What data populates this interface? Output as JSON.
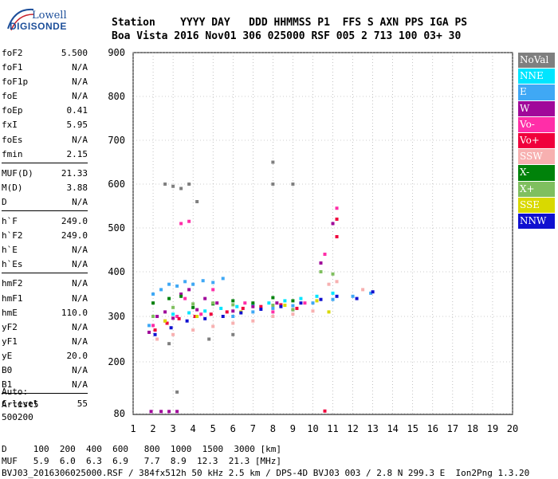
{
  "logo": {
    "line1": "Lowell",
    "line2": "DIGISONDE"
  },
  "header": {
    "labels": "Station    YYYY DAY   DDD HHMMSS P1  FFS S AXN PPS IGA PS",
    "values": "Boa Vista 2016 Nov01 306 025000 RSF 005 2 713 100 03+ 30"
  },
  "params": {
    "group1": [
      {
        "key": "foF2",
        "value": "5.500"
      },
      {
        "key": "foF1",
        "value": "N/A"
      },
      {
        "key": "foF1p",
        "value": "N/A"
      },
      {
        "key": "foE",
        "value": "N/A"
      },
      {
        "key": "foEp",
        "value": "0.41"
      },
      {
        "key": "fxI",
        "value": "5.95"
      },
      {
        "key": "foEs",
        "value": "N/A"
      },
      {
        "key": "fmin",
        "value": "2.15"
      }
    ],
    "group2": [
      {
        "key": "MUF(D)",
        "value": "21.33"
      },
      {
        "key": "M(D)",
        "value": "3.88"
      },
      {
        "key": "D",
        "value": "N/A"
      }
    ],
    "group3": [
      {
        "key": "h`F",
        "value": "249.0"
      },
      {
        "key": "h`F2",
        "value": "249.0"
      },
      {
        "key": "h`E",
        "value": "N/A"
      },
      {
        "key": "h`Es",
        "value": "N/A"
      }
    ],
    "group4": [
      {
        "key": "hmF2",
        "value": "N/A"
      },
      {
        "key": "hmF1",
        "value": "N/A"
      },
      {
        "key": "hmE",
        "value": "110.0"
      },
      {
        "key": "yF2",
        "value": "N/A"
      },
      {
        "key": "yF1",
        "value": "N/A"
      },
      {
        "key": "yE",
        "value": "20.0"
      },
      {
        "key": "B0",
        "value": "N/A"
      },
      {
        "key": "B1",
        "value": "N/A"
      }
    ],
    "group5": [
      {
        "key": "C-level",
        "value": "55"
      }
    ]
  },
  "auto": {
    "line1": "Auto:",
    "line2": "Artist5",
    "line3": "500200"
  },
  "legend": [
    {
      "label": "NoVal",
      "bg": "#7f7f7f",
      "fg": "#ffffff"
    },
    {
      "label": "NNE",
      "bg": "#00e5ff",
      "fg": "#ffffff"
    },
    {
      "label": "E",
      "bg": "#3fa8f5",
      "fg": "#ffffff"
    },
    {
      "label": "W",
      "bg": "#a0089a",
      "fg": "#ffffff"
    },
    {
      "label": "Vo-",
      "bg": "#ff2ea8",
      "fg": "#ffffff"
    },
    {
      "label": "Vo+",
      "bg": "#f0003c",
      "fg": "#ffffff"
    },
    {
      "label": "SSW",
      "bg": "#f7b0b0",
      "fg": "#ffffff"
    },
    {
      "label": "X-",
      "bg": "#00820a",
      "fg": "#ffffff"
    },
    {
      "label": "X+",
      "bg": "#7fbf5f",
      "fg": "#ffffff"
    },
    {
      "label": "SSE",
      "bg": "#d9d900",
      "fg": "#ffffff"
    },
    {
      "label": "NNW",
      "bg": "#1010d0",
      "fg": "#ffffff"
    }
  ],
  "footer": {
    "line1": "D     100  200  400  600   800  1000  1500  3000 [km]",
    "line2": "MUF   5.9  6.0  6.3  6.9   7.7  8.9  12.3  21.3 [MHz]",
    "line3": "BVJ03_2016306025000.RSF / 384fx512h 50 kHz 2.5 km / DPS-4D BVJ03 003 / 2.8 N 299.3 E  Ion2Png 1.3.20"
  },
  "chart_data": {
    "type": "scatter",
    "title": "",
    "xlabel": "",
    "ylabel": "",
    "xlim": [
      1,
      20
    ],
    "ylim": [
      80,
      900
    ],
    "x_ticks": [
      1,
      2,
      3,
      4,
      5,
      6,
      7,
      8,
      9,
      10,
      11,
      12,
      13,
      14,
      15,
      16,
      17,
      18,
      19,
      20
    ],
    "y_ticks": [
      80,
      200,
      300,
      400,
      500,
      600,
      700,
      800,
      900
    ],
    "grid": true,
    "series": [
      {
        "name": "NNE",
        "color": "#00e5ff",
        "points": [
          [
            2.2,
            300
          ],
          [
            3.0,
            305
          ],
          [
            3.8,
            308
          ],
          [
            4.6,
            312
          ],
          [
            5.4,
            318
          ],
          [
            6.2,
            322
          ],
          [
            7.0,
            326
          ],
          [
            7.8,
            330
          ],
          [
            8.6,
            335
          ],
          [
            9.4,
            340
          ],
          [
            10.2,
            345
          ],
          [
            11.0,
            352
          ]
        ]
      },
      {
        "name": "E",
        "color": "#3fa8f5",
        "points": [
          [
            1.8,
            280
          ],
          [
            2.0,
            350
          ],
          [
            2.4,
            360
          ],
          [
            2.8,
            372
          ],
          [
            3.2,
            368
          ],
          [
            3.6,
            378
          ],
          [
            4.0,
            372
          ],
          [
            4.5,
            380
          ],
          [
            5.0,
            376
          ],
          [
            5.5,
            385
          ],
          [
            6.0,
            300
          ],
          [
            7.0,
            310
          ],
          [
            8.0,
            318
          ],
          [
            9.0,
            324
          ],
          [
            10.0,
            330
          ],
          [
            11.0,
            338
          ],
          [
            12.0,
            345
          ],
          [
            12.9,
            352
          ]
        ]
      },
      {
        "name": "W",
        "color": "#a0089a",
        "points": [
          [
            1.8,
            265
          ],
          [
            2.2,
            300
          ],
          [
            2.6,
            310
          ],
          [
            3.0,
            296
          ],
          [
            3.4,
            350
          ],
          [
            3.8,
            360
          ],
          [
            4.2,
            315
          ],
          [
            4.6,
            340
          ],
          [
            5.2,
            330
          ],
          [
            6.0,
            312
          ],
          [
            7.0,
            322
          ],
          [
            8.2,
            330
          ],
          [
            9.0,
            315
          ],
          [
            10.4,
            420
          ],
          [
            11.0,
            510
          ],
          [
            1.9,
            85
          ],
          [
            2.4,
            85
          ],
          [
            2.8,
            85
          ],
          [
            3.2,
            85
          ]
        ]
      },
      {
        "name": "Vo-",
        "color": "#ff2ea8",
        "points": [
          [
            2.0,
            280
          ],
          [
            2.6,
            290
          ],
          [
            3.2,
            300
          ],
          [
            3.6,
            340
          ],
          [
            4.4,
            305
          ],
          [
            5.0,
            360
          ],
          [
            6.6,
            330
          ],
          [
            8.0,
            310
          ],
          [
            9.6,
            330
          ],
          [
            10.6,
            440
          ],
          [
            11.2,
            545
          ],
          [
            3.4,
            510
          ],
          [
            3.8,
            515
          ]
        ]
      },
      {
        "name": "Vo+",
        "color": "#f0003c",
        "points": [
          [
            2.1,
            270
          ],
          [
            2.7,
            285
          ],
          [
            3.3,
            295
          ],
          [
            4.1,
            300
          ],
          [
            4.9,
            305
          ],
          [
            5.7,
            310
          ],
          [
            6.5,
            318
          ],
          [
            7.4,
            322
          ],
          [
            8.4,
            326
          ],
          [
            9.2,
            318
          ],
          [
            10.6,
            86
          ],
          [
            11.2,
            520
          ],
          [
            11.2,
            480
          ]
        ]
      },
      {
        "name": "SSW",
        "color": "#f7b0b0",
        "points": [
          [
            2.2,
            250
          ],
          [
            3.0,
            260
          ],
          [
            4.0,
            270
          ],
          [
            5.0,
            278
          ],
          [
            6.0,
            285
          ],
          [
            7.0,
            290
          ],
          [
            8.0,
            300
          ],
          [
            9.0,
            305
          ],
          [
            10.0,
            312
          ],
          [
            10.8,
            372
          ],
          [
            11.2,
            378
          ],
          [
            12.5,
            360
          ]
        ]
      },
      {
        "name": "X-",
        "color": "#00820a",
        "points": [
          [
            2.0,
            330
          ],
          [
            2.8,
            340
          ],
          [
            3.4,
            345
          ],
          [
            4.0,
            320
          ],
          [
            5.0,
            328
          ],
          [
            6.0,
            335
          ],
          [
            7.0,
            330
          ],
          [
            8.0,
            342
          ],
          [
            9.0,
            335
          ]
        ]
      },
      {
        "name": "X+",
        "color": "#7fbf5f",
        "points": [
          [
            2.0,
            300
          ],
          [
            3.0,
            320
          ],
          [
            4.0,
            328
          ],
          [
            5.0,
            330
          ],
          [
            6.0,
            326
          ],
          [
            8.0,
            325
          ],
          [
            9.0,
            315
          ],
          [
            10.4,
            400
          ],
          [
            11.0,
            395
          ]
        ]
      },
      {
        "name": "SSE",
        "color": "#d9d900",
        "points": [
          [
            2.6,
            290
          ],
          [
            4.2,
            300
          ],
          [
            6.4,
            310
          ],
          [
            8.6,
            325
          ],
          [
            10.2,
            335
          ],
          [
            10.8,
            310
          ]
        ]
      },
      {
        "name": "NNW",
        "color": "#1010d0",
        "points": [
          [
            2.1,
            260
          ],
          [
            2.9,
            275
          ],
          [
            3.7,
            290
          ],
          [
            4.6,
            295
          ],
          [
            5.5,
            300
          ],
          [
            6.4,
            308
          ],
          [
            7.4,
            316
          ],
          [
            8.4,
            322
          ],
          [
            9.4,
            330
          ],
          [
            10.4,
            338
          ],
          [
            11.2,
            345
          ],
          [
            12.2,
            340
          ],
          [
            13.0,
            355
          ]
        ]
      },
      {
        "name": "NoVal",
        "color": "#7f7f7f",
        "points": [
          [
            2.6,
            600
          ],
          [
            3.0,
            595
          ],
          [
            3.4,
            590
          ],
          [
            3.8,
            600
          ],
          [
            4.2,
            560
          ],
          [
            8.0,
            650
          ],
          [
            8.0,
            600
          ],
          [
            9.0,
            600
          ],
          [
            3.2,
            130
          ],
          [
            2.8,
            240
          ],
          [
            4.8,
            250
          ],
          [
            6.0,
            260
          ]
        ]
      }
    ]
  }
}
